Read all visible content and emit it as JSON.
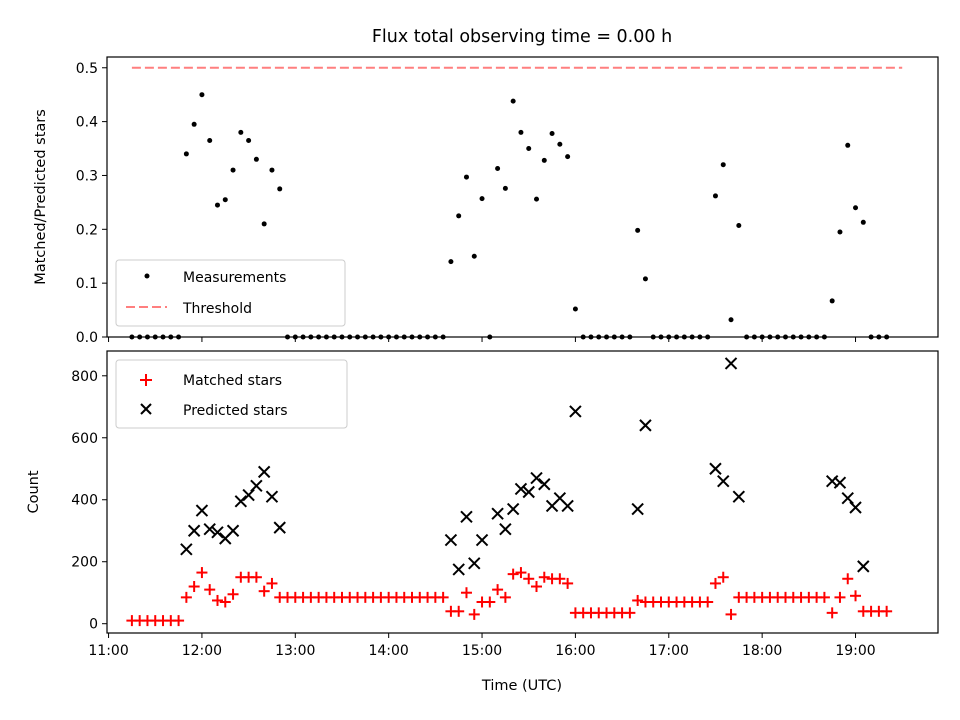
{
  "chart_data": [
    {
      "type": "scatter",
      "title": "Flux total observing time = 0.00 h",
      "xlabel": "",
      "ylabel": "Matched/Predicted stars",
      "ylim": [
        0,
        0.52
      ],
      "xlim": [
        "10:59",
        "19:53"
      ],
      "ytick_labels": [
        "0.0",
        "0.1",
        "0.2",
        "0.3",
        "0.4",
        "0.5"
      ],
      "grid": false,
      "legend_position": "lower-left",
      "threshold": {
        "name": "Threshold",
        "y": 0.5,
        "x_range": [
          "11:15",
          "19:30"
        ],
        "color": "#ff7f7f",
        "style": "dashed"
      },
      "series": [
        {
          "name": "Measurements",
          "marker": "dot",
          "color": "#000000",
          "points": [
            [
              "11:15",
              0
            ],
            [
              "11:20",
              0
            ],
            [
              "11:25",
              0
            ],
            [
              "11:30",
              0
            ],
            [
              "11:35",
              0
            ],
            [
              "11:40",
              0
            ],
            [
              "11:45",
              0
            ],
            [
              "11:50",
              0.34
            ],
            [
              "11:55",
              0.395
            ],
            [
              "12:00",
              0.45
            ],
            [
              "12:05",
              0.365
            ],
            [
              "12:10",
              0.245
            ],
            [
              "12:15",
              0.255
            ],
            [
              "12:20",
              0.31
            ],
            [
              "12:25",
              0.38
            ],
            [
              "12:30",
              0.365
            ],
            [
              "12:35",
              0.33
            ],
            [
              "12:40",
              0.21
            ],
            [
              "12:45",
              0.31
            ],
            [
              "12:50",
              0.275
            ],
            [
              "12:55",
              0
            ],
            [
              "13:00",
              0
            ],
            [
              "13:05",
              0
            ],
            [
              "13:10",
              0
            ],
            [
              "13:15",
              0
            ],
            [
              "13:20",
              0
            ],
            [
              "13:25",
              0
            ],
            [
              "13:30",
              0
            ],
            [
              "13:35",
              0
            ],
            [
              "13:40",
              0
            ],
            [
              "13:45",
              0
            ],
            [
              "13:50",
              0
            ],
            [
              "13:55",
              0
            ],
            [
              "14:00",
              0
            ],
            [
              "14:05",
              0
            ],
            [
              "14:10",
              0
            ],
            [
              "14:15",
              0
            ],
            [
              "14:20",
              0
            ],
            [
              "14:25",
              0
            ],
            [
              "14:30",
              0
            ],
            [
              "14:35",
              0
            ],
            [
              "14:40",
              0.14
            ],
            [
              "14:45",
              0.225
            ],
            [
              "14:50",
              0.297
            ],
            [
              "14:55",
              0.15
            ],
            [
              "15:00",
              0.257
            ],
            [
              "15:05",
              0
            ],
            [
              "15:10",
              0.313
            ],
            [
              "15:15",
              0.276
            ],
            [
              "15:20",
              0.438
            ],
            [
              "15:25",
              0.38
            ],
            [
              "15:30",
              0.35
            ],
            [
              "15:35",
              0.256
            ],
            [
              "15:40",
              0.328
            ],
            [
              "15:45",
              0.378
            ],
            [
              "15:50",
              0.358
            ],
            [
              "15:55",
              0.335
            ],
            [
              "16:00",
              0.052
            ],
            [
              "16:05",
              0
            ],
            [
              "16:10",
              0
            ],
            [
              "16:15",
              0
            ],
            [
              "16:20",
              0
            ],
            [
              "16:25",
              0
            ],
            [
              "16:30",
              0
            ],
            [
              "16:35",
              0
            ],
            [
              "16:40",
              0.198
            ],
            [
              "16:45",
              0.108
            ],
            [
              "16:50",
              0
            ],
            [
              "16:55",
              0
            ],
            [
              "17:00",
              0
            ],
            [
              "17:05",
              0
            ],
            [
              "17:10",
              0
            ],
            [
              "17:15",
              0
            ],
            [
              "17:20",
              0
            ],
            [
              "17:25",
              0
            ],
            [
              "17:30",
              0.262
            ],
            [
              "17:35",
              0.32
            ],
            [
              "17:40",
              0.032
            ],
            [
              "17:45",
              0.207
            ],
            [
              "17:50",
              0
            ],
            [
              "17:55",
              0
            ],
            [
              "18:00",
              0
            ],
            [
              "18:05",
              0
            ],
            [
              "18:10",
              0
            ],
            [
              "18:15",
              0
            ],
            [
              "18:20",
              0
            ],
            [
              "18:25",
              0
            ],
            [
              "18:30",
              0
            ],
            [
              "18:35",
              0
            ],
            [
              "18:40",
              0
            ],
            [
              "18:45",
              0.067
            ],
            [
              "18:50",
              0.195
            ],
            [
              "18:55",
              0.356
            ],
            [
              "19:00",
              0.24
            ],
            [
              "19:05",
              0.213
            ],
            [
              "19:10",
              0
            ],
            [
              "19:15",
              0
            ],
            [
              "19:20",
              0
            ]
          ]
        }
      ]
    },
    {
      "type": "scatter",
      "title": "",
      "xlabel": "Time (UTC)",
      "ylabel": "Count",
      "ylim": [
        -30,
        880
      ],
      "xlim": [
        "10:59",
        "19:53"
      ],
      "x_tick_labels": [
        "11:00",
        "12:00",
        "13:00",
        "14:00",
        "15:00",
        "16:00",
        "17:00",
        "18:00",
        "19:00"
      ],
      "ytick_labels": [
        "0",
        "200",
        "400",
        "600",
        "800"
      ],
      "grid": false,
      "legend_position": "upper-left",
      "series": [
        {
          "name": "Matched stars",
          "marker": "plus",
          "color": "#ff0000",
          "points": [
            [
              "11:15",
              10
            ],
            [
              "11:20",
              10
            ],
            [
              "11:25",
              10
            ],
            [
              "11:30",
              10
            ],
            [
              "11:35",
              10
            ],
            [
              "11:40",
              10
            ],
            [
              "11:45",
              10
            ],
            [
              "11:50",
              85
            ],
            [
              "11:55",
              120
            ],
            [
              "12:00",
              165
            ],
            [
              "12:05",
              110
            ],
            [
              "12:10",
              75
            ],
            [
              "12:15",
              70
            ],
            [
              "12:20",
              95
            ],
            [
              "12:25",
              150
            ],
            [
              "12:30",
              150
            ],
            [
              "12:35",
              150
            ],
            [
              "12:40",
              105
            ],
            [
              "12:45",
              130
            ],
            [
              "12:50",
              85
            ],
            [
              "12:55",
              85
            ],
            [
              "13:00",
              85
            ],
            [
              "13:05",
              85
            ],
            [
              "13:10",
              85
            ],
            [
              "13:15",
              85
            ],
            [
              "13:20",
              85
            ],
            [
              "13:25",
              85
            ],
            [
              "13:30",
              85
            ],
            [
              "13:35",
              85
            ],
            [
              "13:40",
              85
            ],
            [
              "13:45",
              85
            ],
            [
              "13:50",
              85
            ],
            [
              "13:55",
              85
            ],
            [
              "14:00",
              85
            ],
            [
              "14:05",
              85
            ],
            [
              "14:10",
              85
            ],
            [
              "14:15",
              85
            ],
            [
              "14:20",
              85
            ],
            [
              "14:25",
              85
            ],
            [
              "14:30",
              85
            ],
            [
              "14:35",
              85
            ],
            [
              "14:40",
              40
            ],
            [
              "14:45",
              40
            ],
            [
              "14:50",
              100
            ],
            [
              "14:55",
              30
            ],
            [
              "15:00",
              70
            ],
            [
              "15:05",
              70
            ],
            [
              "15:10",
              110
            ],
            [
              "15:15",
              85
            ],
            [
              "15:20",
              160
            ],
            [
              "15:25",
              165
            ],
            [
              "15:30",
              145
            ],
            [
              "15:35",
              120
            ],
            [
              "15:40",
              150
            ],
            [
              "15:45",
              145
            ],
            [
              "15:50",
              145
            ],
            [
              "15:55",
              130
            ],
            [
              "16:00",
              35
            ],
            [
              "16:05",
              35
            ],
            [
              "16:10",
              35
            ],
            [
              "16:15",
              35
            ],
            [
              "16:20",
              35
            ],
            [
              "16:25",
              35
            ],
            [
              "16:30",
              35
            ],
            [
              "16:35",
              35
            ],
            [
              "16:40",
              75
            ],
            [
              "16:45",
              70
            ],
            [
              "16:50",
              70
            ],
            [
              "16:55",
              70
            ],
            [
              "17:00",
              70
            ],
            [
              "17:05",
              70
            ],
            [
              "17:10",
              70
            ],
            [
              "17:15",
              70
            ],
            [
              "17:20",
              70
            ],
            [
              "17:25",
              70
            ],
            [
              "17:30",
              130
            ],
            [
              "17:35",
              150
            ],
            [
              "17:40",
              30
            ],
            [
              "17:45",
              85
            ],
            [
              "17:50",
              85
            ],
            [
              "17:55",
              85
            ],
            [
              "18:00",
              85
            ],
            [
              "18:05",
              85
            ],
            [
              "18:10",
              85
            ],
            [
              "18:15",
              85
            ],
            [
              "18:20",
              85
            ],
            [
              "18:25",
              85
            ],
            [
              "18:30",
              85
            ],
            [
              "18:35",
              85
            ],
            [
              "18:40",
              85
            ],
            [
              "18:45",
              35
            ],
            [
              "18:50",
              85
            ],
            [
              "18:55",
              145
            ],
            [
              "19:00",
              90
            ],
            [
              "19:05",
              40
            ],
            [
              "19:10",
              40
            ],
            [
              "19:15",
              40
            ],
            [
              "19:20",
              40
            ]
          ]
        },
        {
          "name": "Predicted stars",
          "marker": "x",
          "color": "#000000",
          "points": [
            [
              "11:50",
              240
            ],
            [
              "11:55",
              300
            ],
            [
              "12:00",
              365
            ],
            [
              "12:05",
              305
            ],
            [
              "12:10",
              295
            ],
            [
              "12:15",
              275
            ],
            [
              "12:20",
              300
            ],
            [
              "12:25",
              395
            ],
            [
              "12:30",
              415
            ],
            [
              "12:35",
              445
            ],
            [
              "12:40",
              490
            ],
            [
              "12:45",
              410
            ],
            [
              "12:50",
              310
            ],
            [
              "14:40",
              270
            ],
            [
              "14:45",
              175
            ],
            [
              "14:50",
              345
            ],
            [
              "14:55",
              195
            ],
            [
              "15:00",
              270
            ],
            [
              "15:10",
              355
            ],
            [
              "15:15",
              305
            ],
            [
              "15:20",
              370
            ],
            [
              "15:25",
              435
            ],
            [
              "15:30",
              425
            ],
            [
              "15:35",
              470
            ],
            [
              "15:40",
              450
            ],
            [
              "15:45",
              380
            ],
            [
              "15:50",
              405
            ],
            [
              "15:55",
              380
            ],
            [
              "16:00",
              685
            ],
            [
              "16:40",
              370
            ],
            [
              "16:45",
              640
            ],
            [
              "17:30",
              500
            ],
            [
              "17:35",
              460
            ],
            [
              "17:40",
              840
            ],
            [
              "17:45",
              410
            ],
            [
              "18:45",
              460
            ],
            [
              "18:50",
              455
            ],
            [
              "18:55",
              405
            ],
            [
              "19:00",
              375
            ],
            [
              "19:05",
              185
            ]
          ]
        }
      ]
    }
  ]
}
